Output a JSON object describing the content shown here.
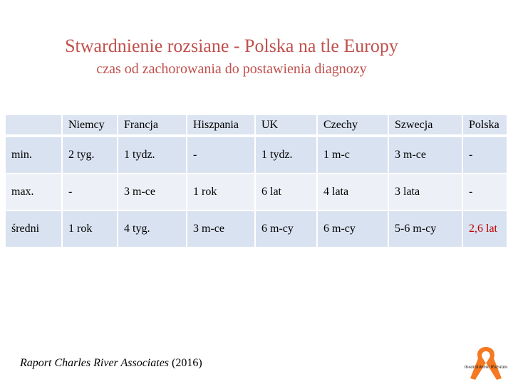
{
  "slide": {
    "title": "Stwardnienie rozsiane  - Polska na tle Europy",
    "subtitle": "czas od zachorowania do postawienia diagnozy"
  },
  "table": {
    "columns": [
      "",
      "Niemcy",
      "Francja",
      "Hiszpania",
      "UK",
      "Czechy",
      "Szwecja",
      "Polska"
    ],
    "rows": [
      [
        "min.",
        "2 tyg.",
        "1 tydz.",
        "-",
        "1 tydz.",
        "1 m-c",
        "3 m-ce",
        "-"
      ],
      [
        "max.",
        "-",
        "3 m-ce",
        "1 rok",
        "6 lat",
        "4 lata",
        "3 lata",
        "-"
      ],
      [
        "średni",
        "1 rok",
        "4 tyg.",
        "3 m-ce",
        "6 m-cy",
        "6 m-cy",
        "5-6 m-cy",
        "2,6 lat"
      ]
    ],
    "highlight_color": "#c00000",
    "header_bg": "#d9e2f0",
    "row_alt_bg": "#edf1f7"
  },
  "source": {
    "italic_text": "Raport Charles River Associates",
    "year": "(2016)"
  },
  "logo": {
    "icon": "awareness-ribbon-icon",
    "color": "#f47920",
    "text": "Stwardnienie Rozsiane"
  }
}
